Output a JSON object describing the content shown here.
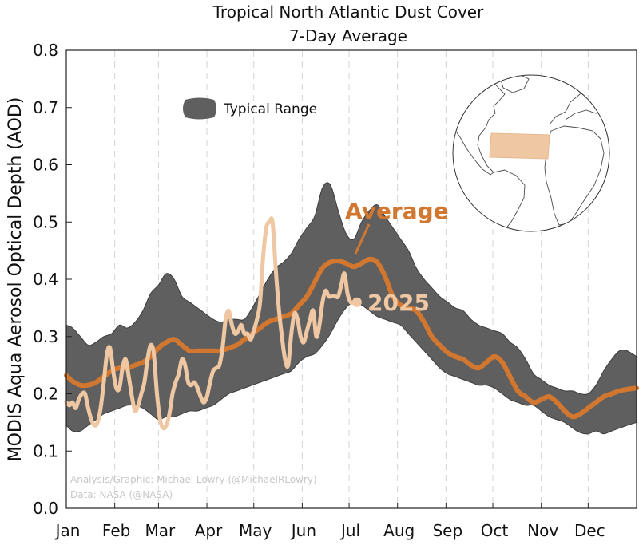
{
  "chart_data": {
    "type": "line",
    "title": "Tropical North Atlantic Dust Cover",
    "subtitle": "7-Day Average",
    "ylabel": "MODIS Aqua Aerosol Optical Depth (AOD)",
    "xlabel": "",
    "ylim": [
      0,
      0.8
    ],
    "xlim": [
      1,
      366
    ],
    "y_ticks": [
      "0.0",
      "0.1",
      "0.2",
      "0.3",
      "0.4",
      "0.5",
      "0.6",
      "0.7",
      "0.8"
    ],
    "x_ticks": [
      {
        "label": "Jan",
        "day": 1
      },
      {
        "label": "Feb",
        "day": 32
      },
      {
        "label": "Mar",
        "day": 60
      },
      {
        "label": "Apr",
        "day": 91
      },
      {
        "label": "May",
        "day": 121
      },
      {
        "label": "Jun",
        "day": 152
      },
      {
        "label": "Jul",
        "day": 182
      },
      {
        "label": "Aug",
        "day": 213
      },
      {
        "label": "Sep",
        "day": 244
      },
      {
        "label": "Oct",
        "day": 274
      },
      {
        "label": "Nov",
        "day": 305
      },
      {
        "label": "Dec",
        "day": 335
      }
    ],
    "grid": "vertical dashed",
    "legend": {
      "placement": "top-left",
      "entries": [
        "Typical Range"
      ]
    },
    "colors": {
      "band": "#5f5f5f",
      "average": "#d2772f",
      "year": "#efc7a3",
      "frame": "#222222"
    },
    "typical_range": {
      "x": [
        1,
        5,
        10,
        15,
        20,
        25,
        30,
        35,
        40,
        45,
        50,
        55,
        60,
        65,
        70,
        75,
        80,
        85,
        90,
        95,
        100,
        105,
        110,
        115,
        120,
        125,
        130,
        135,
        140,
        145,
        150,
        155,
        160,
        165,
        170,
        175,
        180,
        185,
        190,
        195,
        200,
        205,
        210,
        215,
        220,
        225,
        230,
        235,
        240,
        245,
        250,
        255,
        260,
        265,
        270,
        275,
        280,
        285,
        290,
        295,
        300,
        305,
        310,
        315,
        320,
        325,
        330,
        335,
        340,
        345,
        350,
        355,
        360,
        366
      ],
      "upper": [
        0.32,
        0.315,
        0.3,
        0.285,
        0.29,
        0.3,
        0.305,
        0.32,
        0.315,
        0.325,
        0.345,
        0.375,
        0.39,
        0.41,
        0.4,
        0.37,
        0.36,
        0.35,
        0.34,
        0.33,
        0.325,
        0.33,
        0.33,
        0.33,
        0.35,
        0.375,
        0.4,
        0.42,
        0.43,
        0.445,
        0.47,
        0.49,
        0.51,
        0.56,
        0.565,
        0.52,
        0.48,
        0.47,
        0.5,
        0.52,
        0.53,
        0.51,
        0.49,
        0.47,
        0.45,
        0.42,
        0.4,
        0.385,
        0.37,
        0.36,
        0.35,
        0.345,
        0.33,
        0.32,
        0.315,
        0.31,
        0.305,
        0.29,
        0.28,
        0.26,
        0.235,
        0.225,
        0.215,
        0.21,
        0.205,
        0.205,
        0.2,
        0.2,
        0.215,
        0.24,
        0.26,
        0.275,
        0.275,
        0.265
      ],
      "lower": [
        0.145,
        0.135,
        0.135,
        0.145,
        0.155,
        0.165,
        0.17,
        0.175,
        0.18,
        0.18,
        0.175,
        0.165,
        0.155,
        0.16,
        0.16,
        0.165,
        0.17,
        0.17,
        0.175,
        0.18,
        0.19,
        0.2,
        0.205,
        0.21,
        0.215,
        0.22,
        0.225,
        0.23,
        0.235,
        0.24,
        0.255,
        0.265,
        0.27,
        0.285,
        0.305,
        0.33,
        0.35,
        0.36,
        0.355,
        0.345,
        0.335,
        0.33,
        0.325,
        0.32,
        0.305,
        0.29,
        0.275,
        0.26,
        0.245,
        0.235,
        0.23,
        0.225,
        0.22,
        0.215,
        0.215,
        0.21,
        0.2,
        0.19,
        0.185,
        0.18,
        0.18,
        0.17,
        0.16,
        0.155,
        0.15,
        0.14,
        0.132,
        0.13,
        0.135,
        0.13,
        0.135,
        0.14,
        0.145,
        0.15
      ]
    },
    "series": [
      {
        "name": "Average",
        "x": [
          1,
          5,
          10,
          15,
          20,
          25,
          30,
          35,
          40,
          45,
          50,
          55,
          60,
          65,
          70,
          75,
          80,
          85,
          90,
          95,
          100,
          105,
          110,
          115,
          120,
          125,
          130,
          135,
          140,
          145,
          150,
          155,
          160,
          165,
          170,
          175,
          180,
          185,
          190,
          195,
          200,
          205,
          210,
          215,
          220,
          225,
          230,
          235,
          240,
          245,
          250,
          255,
          260,
          265,
          270,
          275,
          280,
          285,
          290,
          295,
          300,
          305,
          310,
          315,
          320,
          325,
          330,
          335,
          340,
          345,
          350,
          355,
          360,
          366
        ],
        "values": [
          0.232,
          0.222,
          0.215,
          0.215,
          0.22,
          0.23,
          0.24,
          0.245,
          0.245,
          0.25,
          0.255,
          0.265,
          0.28,
          0.29,
          0.295,
          0.285,
          0.275,
          0.275,
          0.275,
          0.275,
          0.275,
          0.28,
          0.285,
          0.295,
          0.305,
          0.315,
          0.325,
          0.33,
          0.335,
          0.34,
          0.355,
          0.37,
          0.395,
          0.42,
          0.43,
          0.432,
          0.428,
          0.422,
          0.428,
          0.435,
          0.43,
          0.405,
          0.37,
          0.355,
          0.35,
          0.345,
          0.325,
          0.3,
          0.285,
          0.272,
          0.265,
          0.26,
          0.25,
          0.245,
          0.255,
          0.265,
          0.255,
          0.23,
          0.205,
          0.195,
          0.185,
          0.19,
          0.195,
          0.185,
          0.17,
          0.16,
          0.165,
          0.175,
          0.185,
          0.195,
          0.2,
          0.205,
          0.208,
          0.21
        ]
      },
      {
        "name": "2025",
        "x": [
          1,
          3,
          5,
          7,
          9,
          11,
          13,
          15,
          17,
          19,
          21,
          23,
          25,
          27,
          29,
          31,
          33,
          35,
          37,
          39,
          41,
          43,
          45,
          47,
          49,
          51,
          53,
          55,
          57,
          59,
          61,
          63,
          65,
          67,
          69,
          71,
          73,
          75,
          77,
          79,
          81,
          83,
          85,
          87,
          89,
          91,
          93,
          95,
          97,
          99,
          101,
          103,
          105,
          107,
          109,
          111,
          113,
          115,
          117,
          119,
          121,
          123,
          125,
          127,
          129,
          131,
          133,
          135,
          137,
          139,
          141,
          143,
          145,
          147,
          149,
          151,
          153,
          155,
          157,
          159,
          161,
          163,
          165,
          167,
          169,
          171,
          173,
          175,
          177,
          179,
          181,
          183,
          185,
          187
        ],
        "values": [
          0.185,
          0.18,
          0.185,
          0.175,
          0.19,
          0.2,
          0.2,
          0.175,
          0.155,
          0.145,
          0.15,
          0.175,
          0.22,
          0.27,
          0.28,
          0.24,
          0.21,
          0.21,
          0.245,
          0.26,
          0.23,
          0.195,
          0.17,
          0.18,
          0.2,
          0.22,
          0.26,
          0.285,
          0.27,
          0.2,
          0.155,
          0.14,
          0.145,
          0.165,
          0.2,
          0.22,
          0.235,
          0.26,
          0.25,
          0.22,
          0.215,
          0.22,
          0.21,
          0.195,
          0.185,
          0.195,
          0.22,
          0.24,
          0.245,
          0.25,
          0.28,
          0.33,
          0.345,
          0.32,
          0.305,
          0.31,
          0.32,
          0.305,
          0.305,
          0.295,
          0.31,
          0.33,
          0.36,
          0.44,
          0.49,
          0.5,
          0.5,
          0.42,
          0.35,
          0.3,
          0.26,
          0.25,
          0.305,
          0.34,
          0.33,
          0.3,
          0.29,
          0.31,
          0.33,
          0.345,
          0.3,
          0.32,
          0.36,
          0.38,
          0.37,
          0.37,
          0.37,
          0.37,
          0.39,
          0.41,
          0.375,
          0.36,
          0.36,
          0.36
        ]
      }
    ],
    "annotations": {
      "average_label": "Average",
      "year_label": "2025",
      "credit_line1": "Analysis/Graphic: Michael Lowry (@MichaelRLowry)",
      "credit_line2": "Data: NASA (@NASA)"
    },
    "inset": {
      "type": "globe",
      "highlight": "Tropical North Atlantic region"
    }
  }
}
